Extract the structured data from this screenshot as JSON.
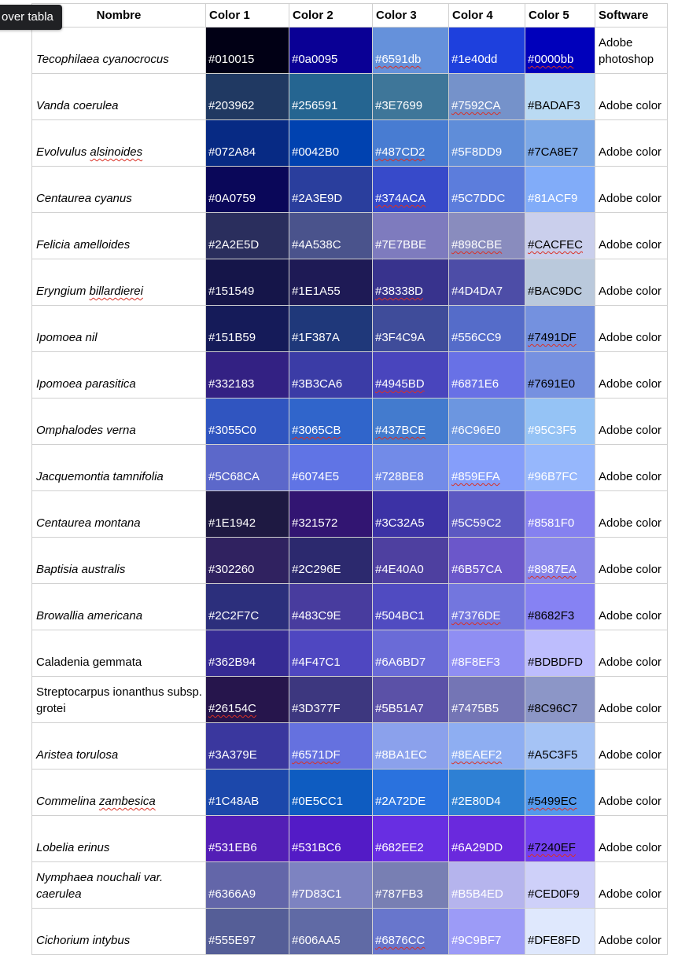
{
  "tooltip": "over tabla",
  "headers": {
    "nombre": "Nombre",
    "color1": "Color 1",
    "color2": "Color 2",
    "color3": "Color 3",
    "color4": "Color 4",
    "color5": "Color 5",
    "software": "Software"
  },
  "rows": [
    {
      "name": "Tecophilaea cyanocrocus",
      "italic": true,
      "colors": [
        "#010015",
        "#0a0095",
        "#6591db",
        "#1e40dd",
        "#0000bb"
      ],
      "swatch_hex": [
        "#010015",
        "#0a0095",
        "#6591db",
        "#1e40dd",
        "#0000bb"
      ],
      "software": "Adobe photoshop"
    },
    {
      "name": "Vanda coerulea",
      "italic": true,
      "colors": [
        "#203962",
        "#256591",
        "#3E7699",
        "#7592CA",
        "#BADAF3"
      ],
      "swatch_hex": [
        "#203962",
        "#256591",
        "#3E7699",
        "#7592CA",
        "#BADAF3"
      ],
      "software": "Adobe color"
    },
    {
      "name": "Evolvulus alsinoides",
      "italic": true,
      "colors": [
        "#072A84",
        "#0042B0",
        "#487CD2",
        "#5F8DD9",
        "#7CA8E7"
      ],
      "swatch_hex": [
        "#072A84",
        "#0042B0",
        "#487CD2",
        "#5F8DD9",
        "#7CA8E7"
      ],
      "software": "Adobe color"
    },
    {
      "name": "Centaurea cyanus",
      "italic": true,
      "colors": [
        "#0A0759",
        "#2A3E9D",
        "#374ACA",
        "#5C7DDC",
        "#81ACF9"
      ],
      "swatch_hex": [
        "#0A0759",
        "#2A3E9D",
        "#374ACA",
        "#5C7DDC",
        "#81ACF9"
      ],
      "software": "Adobe color"
    },
    {
      "name": "Felicia amelloides",
      "italic": true,
      "colors": [
        "#2A2E5D",
        "#4A538C",
        "#7E7BBE",
        "#898CBE",
        "#CACFEC"
      ],
      "swatch_hex": [
        "#2A2E5D",
        "#4A538C",
        "#7E7BBE",
        "#898CBE",
        "#CACFEC"
      ],
      "software": "Adobe color"
    },
    {
      "name": "Eryngium billardierei",
      "italic": true,
      "colors": [
        "#151549",
        "#1E1A55",
        "#38338D",
        "#4D4DA7",
        "#BAC9DC"
      ],
      "swatch_hex": [
        "#151549",
        "#1E1A55",
        "#38338D",
        "#4D4DA7",
        "#BAC9DC"
      ],
      "software": "Adobe color"
    },
    {
      "name": "Ipomoea nil",
      "italic": true,
      "colors": [
        "#151B59",
        "#1F387A",
        "#3F4C9A",
        "#556CC9",
        "#7491DF"
      ],
      "swatch_hex": [
        "#151B59",
        "#1F387A",
        "#3F4C9A",
        "#556CC9",
        "#7491DF"
      ],
      "software": "Adobe color"
    },
    {
      "name": "Ipomoea parasitica",
      "italic": true,
      "colors": [
        "#332183",
        "#3B3CA6",
        "#4945BD",
        "#6871E6",
        "#7691E0"
      ],
      "swatch_hex": [
        "#332183",
        "#3B3CA6",
        "#4945BD",
        "#6871E6",
        "#7691E0"
      ],
      "software": "Adobe color"
    },
    {
      "name": "Omphalodes verna",
      "italic": true,
      "colors": [
        "#3055C0",
        "#3065CB",
        "#437BCE",
        "#6C96E0",
        "#95C3F5"
      ],
      "swatch_hex": [
        "#3055C0",
        "#3065CB",
        "#437BCE",
        "#6C96E0",
        "#95C3F5"
      ],
      "software": "Adobe color"
    },
    {
      "name": "Jacquemontia tamnifolia",
      "italic": true,
      "colors": [
        "#5C68CA",
        "#6074E5",
        "#728BE8",
        "#859EFA",
        "#96B7FC"
      ],
      "swatch_hex": [
        "#5C68CA",
        "#6074E5",
        "#728BE8",
        "#859EFA",
        "#96B7FC"
      ],
      "software": "Adobe color"
    },
    {
      "name": "Centaurea montana",
      "italic": true,
      "colors": [
        "#1E1942",
        "#321572",
        "#3C32A5",
        "#5C59C2",
        "#8581F0"
      ],
      "swatch_hex": [
        "#1E1942",
        "#321572",
        "#3C32A5",
        "#5C59C2",
        "#8581F0"
      ],
      "software": "Adobe color"
    },
    {
      "name": "Baptisia australis",
      "italic": true,
      "colors": [
        "#302260",
        "#2C296E",
        "#4E40A0",
        "#6B57CA",
        "#8987EA"
      ],
      "swatch_hex": [
        "#302260",
        "#2C296E",
        "#4E40A0",
        "#6B57CA",
        "#8987EA"
      ],
      "software": "Adobe color"
    },
    {
      "name": "Browallia americana",
      "italic": true,
      "colors": [
        "#2C2F7C",
        "#483C9E",
        "#504BC1",
        "#7376DE",
        "#8682F3"
      ],
      "swatch_hex": [
        "#2C2F7C",
        "#483C9E",
        "#504BC1",
        "#7376DE",
        "#8682F3"
      ],
      "software": "Adobe color"
    },
    {
      "name": "Caladenia gemmata",
      "italic": false,
      "colors": [
        "#362B94",
        "#4F47C1",
        "#6A6BD7",
        "#8F8EF3",
        "#BDBDFD"
      ],
      "swatch_hex": [
        "#362B94",
        "#4F47C1",
        "#6A6BD7",
        "#8F8EF3",
        "#BDBDFD"
      ],
      "software": "Adobe color"
    },
    {
      "name": "Streptocarpus ionanthus subsp. grotei",
      "italic": false,
      "colors": [
        "#26154C",
        "#3D377F",
        "#5B51A7",
        "#7475B5",
        "#8C96C7"
      ],
      "swatch_hex": [
        "#26154C",
        "#3D377F",
        "#5B51A7",
        "#7475B5",
        "#8C96C7"
      ],
      "software": "Adobe color"
    },
    {
      "name": "Aristea torulosa",
      "italic": true,
      "colors": [
        "#3A379E",
        "#6571DF",
        "#8BA1EC",
        "#8EAEF2",
        "#A5C3F5"
      ],
      "swatch_hex": [
        "#3A379E",
        "#6571DF",
        "#8BA1EC",
        "#8EAEF2",
        "#A5C3F5"
      ],
      "software": "Adobe color"
    },
    {
      "name": "Commelina zambesica",
      "italic": true,
      "colors": [
        "#1C48AB",
        "#0E5CC1",
        "#2A72DE",
        "#2E80D4",
        "#5499EC"
      ],
      "swatch_hex": [
        "#1C48AB",
        "#0E5CC1",
        "#2A72DE",
        "#2E80D4",
        "#5499EC"
      ],
      "software": "Adobe color"
    },
    {
      "name": "Lobelia erinus",
      "italic": true,
      "colors": [
        "#531EB6",
        "#531BC6",
        "#682EE2",
        "#6A29DD",
        "#7240EF"
      ],
      "swatch_hex": [
        "#531EB6",
        "#531BC6",
        "#682EE2",
        "#6A29DD",
        "#7240EF"
      ],
      "software": "Adobe color"
    },
    {
      "name": "Nymphaea nouchali var. caerulea",
      "italic": true,
      "colors": [
        "#6366A9",
        "#7D83C1",
        "#787FB3",
        "#B5B4ED",
        "#CED0F9"
      ],
      "swatch_hex": [
        "#6366A9",
        "#7D83C1",
        "#787FB3",
        "#B5B4ED",
        "#CED0F9"
      ],
      "software": "Adobe color"
    },
    {
      "name": "Cichorium intybus",
      "italic": true,
      "colors": [
        "#555E97",
        "#606AA5",
        "#6876CC",
        "#9C9BF7",
        "#DFE8FD"
      ],
      "swatch_hex": [
        "#555E97",
        "#606AA5",
        "#6876CC",
        "#9C9BF7",
        "#DFE8FD"
      ],
      "software": "Adobe color"
    }
  ]
}
